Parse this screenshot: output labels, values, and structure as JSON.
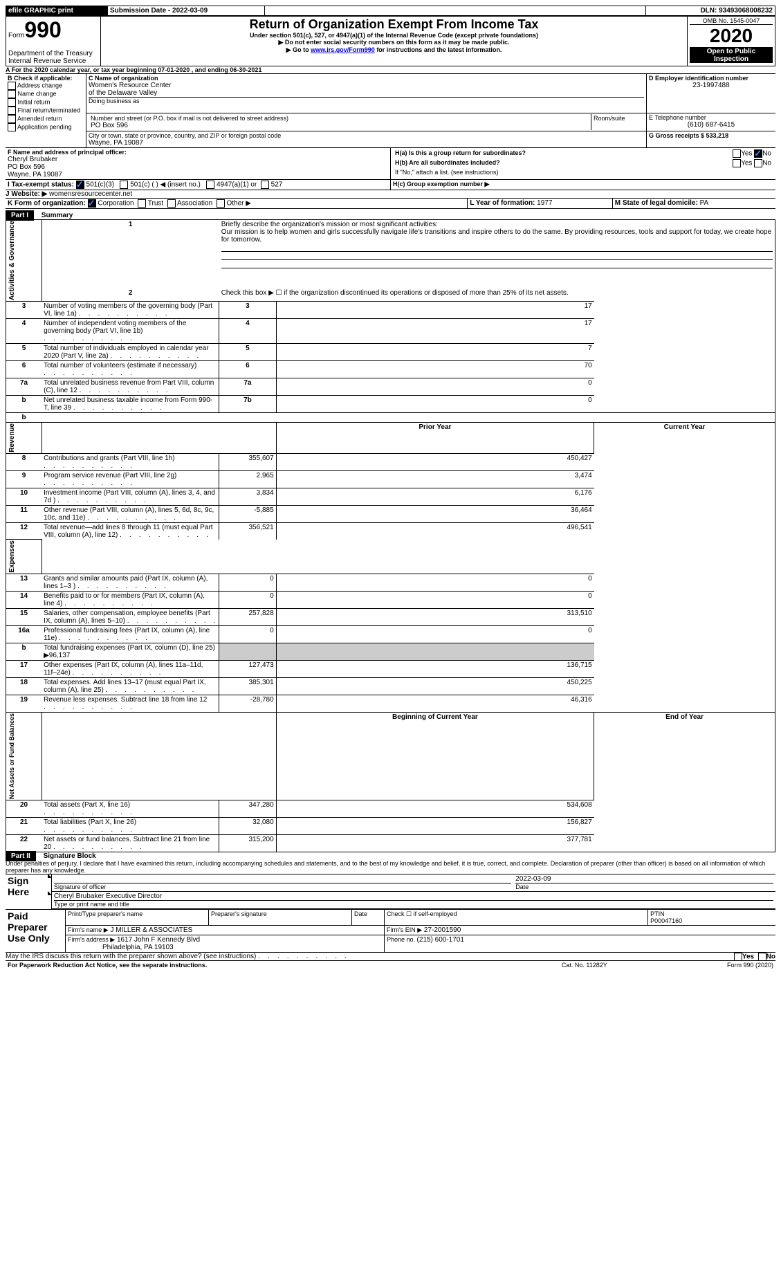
{
  "topbar": {
    "efile": "efile GRAPHIC print",
    "subdate_label": "Submission Date - ",
    "subdate": "2022-03-09",
    "dln_label": "DLN: ",
    "dln": "93493068008232"
  },
  "header": {
    "form_word": "Form",
    "form_num": "990",
    "dept": "Department of the Treasury\nInternal Revenue Service",
    "title": "Return of Organization Exempt From Income Tax",
    "subtitle": "Under section 501(c), 527, or 4947(a)(1) of the Internal Revenue Code (except private foundations)",
    "note1": "Do not enter social security numbers on this form as it may be made public.",
    "note2_pre": "Go to ",
    "note2_link": "www.irs.gov/Form990",
    "note2_post": " for instructions and the latest information.",
    "omb": "OMB No. 1545-0047",
    "year": "2020",
    "inspection": "Open to Public Inspection"
  },
  "period": {
    "a": "A For the 2020 calendar year, or tax year beginning ",
    "begin": "07-01-2020",
    "mid": " , and ending ",
    "end": "06-30-2021"
  },
  "boxB": {
    "label": "B Check if applicable:",
    "addr": "Address change",
    "name": "Name change",
    "init": "Initial return",
    "final": "Final return/terminated",
    "amend": "Amended return",
    "app": "Application pending"
  },
  "boxC": {
    "c_label": "C Name of organization",
    "org1": "Women's Resource Center",
    "org2": "of the Delaware Valley",
    "dba": "Doing business as",
    "addr_label": "Number and street (or P.O. box if mail is not delivered to street address)",
    "room": "Room/suite",
    "addr": "PO Box 596",
    "city_label": "City or town, state or province, country, and ZIP or foreign postal code",
    "city": "Wayne, PA   19087"
  },
  "boxD": {
    "label": "D Employer identification number",
    "ein": "23-1997488",
    "e_label": "E Telephone number",
    "phone": "(610) 687-6415",
    "g_label": "G Gross receipts $ ",
    "g_val": "533,218"
  },
  "boxF": {
    "label": "F  Name and address of principal officer:",
    "name": "Cheryl Brubaker",
    "addr1": "PO Box 596",
    "addr2": "Wayne, PA   19087"
  },
  "boxH": {
    "ha": "H(a)  Is this a group return for subordinates?",
    "hb": "H(b)  Are all subordinates included?",
    "hnote": "If \"No,\" attach a list. (see instructions)",
    "hc": "H(c)  Group exemption number ▶",
    "yes": "Yes",
    "no": "No"
  },
  "boxI": {
    "label": "I    Tax-exempt status:",
    "c3": "501(c)(3)",
    "c": "501(c) (  ) ◀ (insert no.)",
    "a1": "4947(a)(1) or",
    "527": "527"
  },
  "boxJ": {
    "label": "J    Website: ▶  ",
    "val": "womensresourcecenter.net"
  },
  "boxK": {
    "label": "K Form of organization:",
    "corp": "Corporation",
    "trust": "Trust",
    "assoc": "Association",
    "other": "Other ▶"
  },
  "boxLM": {
    "l": "L Year of formation: ",
    "lval": "1977",
    "m": "M State of legal domicile: ",
    "mval": "PA"
  },
  "part1": {
    "head": "Part I",
    "title": "Summary",
    "side1": "Activities & Governance",
    "side2": "Revenue",
    "side3": "Expenses",
    "side4": "Net Assets or Fund Balances",
    "q1": "Briefly describe the organization's mission or most significant activities:",
    "mission": "Our mission is to help women and girls successfully navigate life's transitions and inspire others to do the same. By providing resources, tools and support for today, we create hope for tomorrow.",
    "q2": "Check this box ▶ ☐  if the organization discontinued its operations or disposed of more than 25% of its net assets.",
    "rows_gov": [
      {
        "n": "3",
        "t": "Number of voting members of the governing body (Part VI, line 1a)",
        "b": "3",
        "v": "17"
      },
      {
        "n": "4",
        "t": "Number of independent voting members of the governing body (Part VI, line 1b)",
        "b": "4",
        "v": "17"
      },
      {
        "n": "5",
        "t": "Total number of individuals employed in calendar year 2020 (Part V, line 2a)",
        "b": "5",
        "v": "7"
      },
      {
        "n": "6",
        "t": "Total number of volunteers (estimate if necessary)",
        "b": "6",
        "v": "70"
      },
      {
        "n": "7a",
        "t": "Total unrelated business revenue from Part VIII, column (C), line 12",
        "b": "7a",
        "v": "0"
      },
      {
        "n": "b",
        "t": "Net unrelated business taxable income from Form 990-T, line 39",
        "b": "7b",
        "v": "0"
      }
    ],
    "col_prior": "Prior Year",
    "col_curr": "Current Year",
    "rows_rev": [
      {
        "n": "8",
        "t": "Contributions and grants (Part VIII, line 1h)",
        "p": "355,607",
        "c": "450,427"
      },
      {
        "n": "9",
        "t": "Program service revenue (Part VIII, line 2g)",
        "p": "2,965",
        "c": "3,474"
      },
      {
        "n": "10",
        "t": "Investment income (Part VIII, column (A), lines 3, 4, and 7d )",
        "p": "3,834",
        "c": "6,176"
      },
      {
        "n": "11",
        "t": "Other revenue (Part VIII, column (A), lines 5, 6d, 8c, 9c, 10c, and 11e)",
        "p": "-5,885",
        "c": "36,464"
      },
      {
        "n": "12",
        "t": "Total revenue—add lines 8 through 11 (must equal Part VIII, column (A), line 12)",
        "p": "356,521",
        "c": "496,541"
      }
    ],
    "rows_exp": [
      {
        "n": "13",
        "t": "Grants and similar amounts paid (Part IX, column (A), lines 1–3 )",
        "p": "0",
        "c": "0"
      },
      {
        "n": "14",
        "t": "Benefits paid to or for members (Part IX, column (A), line 4)",
        "p": "0",
        "c": "0"
      },
      {
        "n": "15",
        "t": "Salaries, other compensation, employee benefits (Part IX, column (A), lines 5–10)",
        "p": "257,828",
        "c": "313,510"
      },
      {
        "n": "16a",
        "t": "Professional fundraising fees (Part IX, column (A), line 11e)",
        "p": "0",
        "c": "0"
      },
      {
        "n": "b",
        "t": "Total fundraising expenses (Part IX, column (D), line 25) ▶96,137",
        "p": "",
        "c": ""
      },
      {
        "n": "17",
        "t": "Other expenses (Part IX, column (A), lines 11a–11d, 11f–24e)",
        "p": "127,473",
        "c": "136,715"
      },
      {
        "n": "18",
        "t": "Total expenses. Add lines 13–17 (must equal Part IX, column (A), line 25)",
        "p": "385,301",
        "c": "450,225"
      },
      {
        "n": "19",
        "t": "Revenue less expenses. Subtract line 18 from line 12",
        "p": "-28,780",
        "c": "46,316"
      }
    ],
    "col_begin": "Beginning of Current Year",
    "col_end": "End of Year",
    "rows_net": [
      {
        "n": "20",
        "t": "Total assets (Part X, line 16)",
        "p": "347,280",
        "c": "534,608"
      },
      {
        "n": "21",
        "t": "Total liabilities (Part X, line 26)",
        "p": "32,080",
        "c": "156,827"
      },
      {
        "n": "22",
        "t": "Net assets or fund balances. Subtract line 21 from line 20",
        "p": "315,200",
        "c": "377,781"
      }
    ]
  },
  "part2": {
    "head": "Part II",
    "title": "Signature Block",
    "decl": "Under penalties of perjury, I declare that I have examined this return, including accompanying schedules and statements, and to the best of my knowledge and belief, it is true, correct, and complete. Declaration of preparer (other than officer) is based on all information of which preparer has any knowledge.",
    "sign_here": "Sign Here",
    "sig_of": "Signature of officer",
    "date": "Date",
    "date_val": "2022-03-09",
    "officer": "Cheryl Brubaker  Executive Director",
    "type_name": "Type or print name and title",
    "paid": "Paid Preparer Use Only",
    "prep_name": "Print/Type preparer's name",
    "prep_sig": "Preparer's signature",
    "check_self": "Check ☐ if self-employed",
    "ptin_label": "PTIN",
    "ptin": "P00047160",
    "firm_name_l": "Firm's name      ▶",
    "firm_name": "J MILLER & ASSOCIATES",
    "firm_ein_l": "Firm's EIN ▶",
    "firm_ein": "27-2001590",
    "firm_addr_l": "Firm's address ▶",
    "firm_addr1": "1617 John F Kennedy Blvd",
    "firm_addr2": "Philadelphia, PA   19103",
    "phone_l": "Phone no. ",
    "phone": "(215) 600-1701",
    "discuss": "May the IRS discuss this return with the preparer shown above? (see instructions)",
    "yes": "Yes",
    "no": "No"
  },
  "footer": {
    "left": "For Paperwork Reduction Act Notice, see the separate instructions.",
    "mid": "Cat. No. 11282Y",
    "right": "Form 990 (2020)"
  }
}
